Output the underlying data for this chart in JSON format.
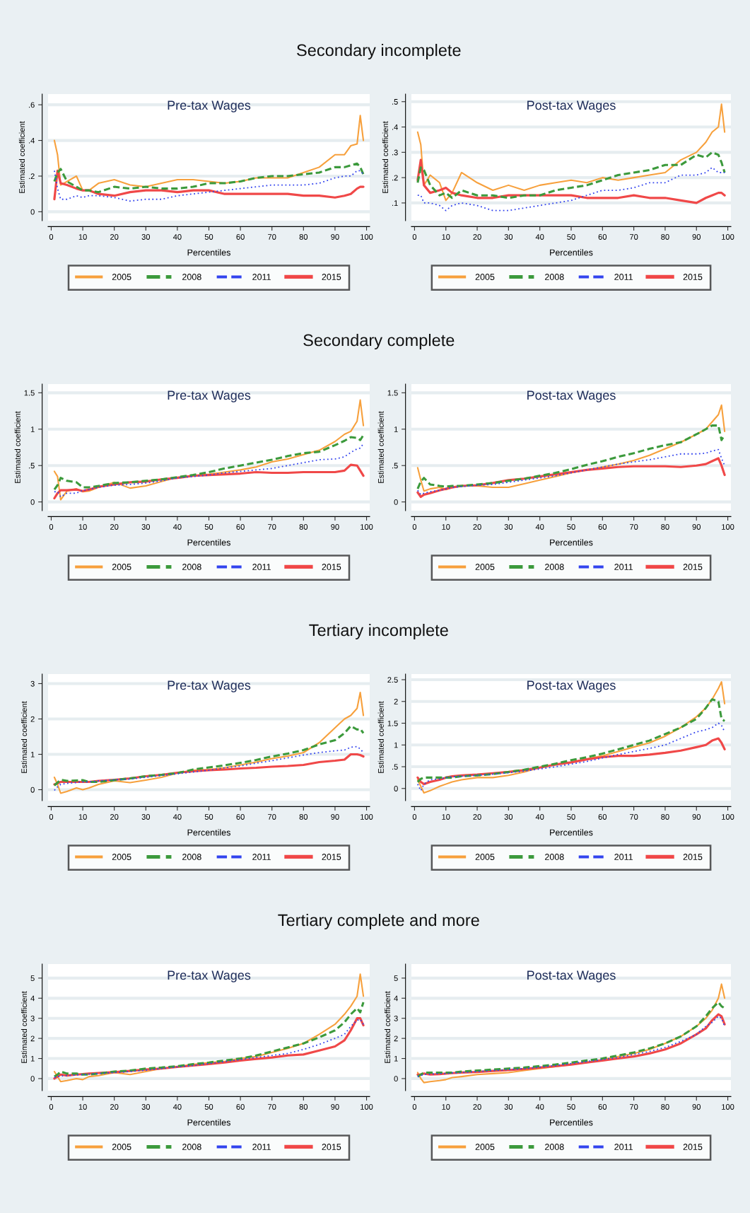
{
  "chart_data": [
    {
      "type": "line",
      "annotations": [
        "Secondary incomplete"
      ],
      "title": "Pre-tax Wages",
      "xlabel": "Percentiles",
      "ylabel": "Estimated coefficient",
      "xlim": [
        -1,
        101
      ],
      "xticks": [
        0,
        10,
        20,
        30,
        40,
        50,
        60,
        70,
        80,
        90,
        100
      ],
      "ylim": [
        -0.05,
        0.66
      ],
      "yticks": [
        0,
        {
          "value": 0.2,
          "label": ".2"
        },
        {
          "value": 0.4,
          "label": ".4"
        },
        {
          "value": 0.6,
          "label": ".6"
        }
      ],
      "grid": "y",
      "legend": "bottom",
      "x": [
        1,
        2,
        3,
        5,
        8,
        10,
        12,
        15,
        20,
        25,
        30,
        35,
        40,
        45,
        50,
        55,
        60,
        65,
        70,
        75,
        80,
        85,
        90,
        93,
        95,
        97,
        98,
        99
      ],
      "series": [
        {
          "name": "2005",
          "color": "#f7a03c",
          "line_style": "solid",
          "values": [
            0.4,
            0.32,
            0.15,
            0.17,
            0.2,
            0.12,
            0.12,
            0.16,
            0.18,
            0.15,
            0.14,
            0.16,
            0.18,
            0.18,
            0.17,
            0.16,
            0.17,
            0.19,
            0.19,
            0.19,
            0.22,
            0.25,
            0.32,
            0.32,
            0.37,
            0.38,
            0.54,
            0.4
          ]
        },
        {
          "name": "2008",
          "color": "#3c9a3c",
          "line_style": "dashed",
          "values": [
            0.17,
            0.22,
            0.24,
            0.17,
            0.14,
            0.12,
            0.12,
            0.11,
            0.14,
            0.13,
            0.14,
            0.13,
            0.13,
            0.14,
            0.16,
            0.16,
            0.17,
            0.19,
            0.2,
            0.2,
            0.21,
            0.22,
            0.25,
            0.25,
            0.26,
            0.27,
            0.25,
            0.21
          ]
        },
        {
          "name": "2011",
          "color": "#3344ee",
          "line_style": "dotted",
          "values": [
            0.23,
            0.13,
            0.07,
            0.07,
            0.09,
            0.08,
            0.09,
            0.09,
            0.08,
            0.06,
            0.07,
            0.07,
            0.09,
            0.1,
            0.11,
            0.12,
            0.13,
            0.14,
            0.15,
            0.15,
            0.15,
            0.16,
            0.19,
            0.2,
            0.2,
            0.23,
            0.23,
            0.21
          ]
        },
        {
          "name": "2015",
          "color": "#f04848",
          "line_style": "solid",
          "values": [
            0.07,
            0.23,
            0.16,
            0.15,
            0.13,
            0.12,
            0.12,
            0.1,
            0.09,
            0.11,
            0.12,
            0.12,
            0.11,
            0.12,
            0.12,
            0.1,
            0.1,
            0.1,
            0.1,
            0.1,
            0.09,
            0.09,
            0.08,
            0.09,
            0.1,
            0.13,
            0.14,
            0.14
          ]
        }
      ]
    },
    {
      "type": "line",
      "title": "Post-tax Wages",
      "xlabel": "Percentiles",
      "ylabel": "Estimated coefficient",
      "xlim": [
        -1,
        101
      ],
      "xticks": [
        0,
        10,
        20,
        30,
        40,
        50,
        60,
        70,
        80,
        90,
        100
      ],
      "ylim": [
        0.03,
        0.53
      ],
      "yticks": [
        {
          "value": 0.1,
          "label": ".1"
        },
        {
          "value": 0.2,
          "label": ".2"
        },
        {
          "value": 0.3,
          "label": ".3"
        },
        {
          "value": 0.4,
          "label": ".4"
        },
        {
          "value": 0.5,
          "label": ".5"
        }
      ],
      "grid": "y",
      "legend": "bottom",
      "x": [
        1,
        2,
        3,
        5,
        8,
        10,
        12,
        15,
        20,
        25,
        30,
        35,
        40,
        45,
        50,
        55,
        60,
        65,
        70,
        75,
        80,
        85,
        90,
        93,
        95,
        97,
        98,
        99
      ],
      "series": [
        {
          "name": "2005",
          "color": "#f7a03c",
          "line_style": "solid",
          "values": [
            0.38,
            0.33,
            0.17,
            0.21,
            0.18,
            0.11,
            0.14,
            0.22,
            0.18,
            0.15,
            0.17,
            0.15,
            0.17,
            0.18,
            0.19,
            0.18,
            0.2,
            0.19,
            0.2,
            0.21,
            0.22,
            0.27,
            0.3,
            0.34,
            0.38,
            0.4,
            0.49,
            0.38
          ]
        },
        {
          "name": "2008",
          "color": "#3c9a3c",
          "line_style": "dashed",
          "values": [
            0.18,
            0.24,
            0.23,
            0.17,
            0.13,
            0.14,
            0.12,
            0.15,
            0.13,
            0.13,
            0.12,
            0.13,
            0.13,
            0.15,
            0.16,
            0.17,
            0.19,
            0.21,
            0.22,
            0.23,
            0.25,
            0.25,
            0.29,
            0.28,
            0.3,
            0.29,
            0.26,
            0.22
          ]
        },
        {
          "name": "2011",
          "color": "#3344ee",
          "line_style": "dotted",
          "values": [
            0.13,
            0.13,
            0.1,
            0.1,
            0.09,
            0.07,
            0.09,
            0.1,
            0.09,
            0.07,
            0.07,
            0.08,
            0.09,
            0.1,
            0.11,
            0.13,
            0.15,
            0.15,
            0.16,
            0.18,
            0.18,
            0.21,
            0.21,
            0.22,
            0.24,
            0.22,
            0.22,
            0.22
          ]
        },
        {
          "name": "2015",
          "color": "#f04848",
          "line_style": "solid",
          "values": [
            0.19,
            0.27,
            0.17,
            0.14,
            0.15,
            0.16,
            0.14,
            0.13,
            0.12,
            0.12,
            0.13,
            0.13,
            0.13,
            0.13,
            0.13,
            0.12,
            0.12,
            0.12,
            0.13,
            0.12,
            0.12,
            0.11,
            0.1,
            0.12,
            0.13,
            0.14,
            0.14,
            0.13
          ]
        }
      ]
    },
    {
      "type": "line",
      "annotations": [
        "Secondary complete"
      ],
      "title": "Pre-tax Wages",
      "xlabel": "Percentiles",
      "ylabel": "Estimated coefficient",
      "xlim": [
        -1,
        101
      ],
      "xticks": [
        0,
        10,
        20,
        30,
        40,
        50,
        60,
        70,
        80,
        90,
        100
      ],
      "ylim": [
        -0.12,
        1.62
      ],
      "yticks": [
        0,
        {
          "value": 0.5,
          "label": ".5"
        },
        1,
        1.5
      ],
      "grid": "y",
      "legend": "bottom",
      "x": [
        1,
        2,
        3,
        5,
        8,
        10,
        12,
        15,
        20,
        25,
        30,
        35,
        40,
        45,
        50,
        55,
        60,
        65,
        70,
        75,
        80,
        85,
        90,
        93,
        95,
        97,
        98,
        99
      ],
      "series": [
        {
          "name": "2005",
          "color": "#f7a03c",
          "line_style": "solid",
          "values": [
            0.42,
            0.35,
            0.03,
            0.15,
            0.18,
            0.14,
            0.15,
            0.2,
            0.27,
            0.19,
            0.22,
            0.28,
            0.34,
            0.36,
            0.38,
            0.41,
            0.44,
            0.48,
            0.55,
            0.59,
            0.65,
            0.71,
            0.83,
            0.93,
            0.97,
            1.11,
            1.4,
            1.05
          ]
        },
        {
          "name": "2008",
          "color": "#3c9a3c",
          "line_style": "dashed",
          "values": [
            0.17,
            0.23,
            0.33,
            0.29,
            0.27,
            0.2,
            0.2,
            0.22,
            0.26,
            0.27,
            0.29,
            0.31,
            0.34,
            0.37,
            0.41,
            0.46,
            0.5,
            0.54,
            0.58,
            0.63,
            0.67,
            0.69,
            0.78,
            0.84,
            0.89,
            0.88,
            0.85,
            0.92
          ]
        },
        {
          "name": "2011",
          "color": "#3344ee",
          "line_style": "dotted",
          "values": [
            0.14,
            0.14,
            0.07,
            0.12,
            0.12,
            0.16,
            0.17,
            0.2,
            0.23,
            0.24,
            0.26,
            0.29,
            0.33,
            0.35,
            0.37,
            0.4,
            0.42,
            0.44,
            0.46,
            0.5,
            0.54,
            0.58,
            0.59,
            0.62,
            0.68,
            0.73,
            0.74,
            0.8
          ]
        },
        {
          "name": "2015",
          "color": "#f04848",
          "line_style": "solid",
          "values": [
            0.05,
            0.12,
            0.16,
            0.16,
            0.17,
            0.15,
            0.17,
            0.21,
            0.24,
            0.27,
            0.28,
            0.31,
            0.33,
            0.36,
            0.37,
            0.38,
            0.39,
            0.41,
            0.4,
            0.4,
            0.41,
            0.41,
            0.41,
            0.43,
            0.51,
            0.5,
            0.43,
            0.36
          ]
        }
      ]
    },
    {
      "type": "line",
      "title": "Post-tax Wages",
      "xlabel": "Percentiles",
      "ylabel": "Estimated coefficient",
      "xlim": [
        -1,
        101
      ],
      "xticks": [
        0,
        10,
        20,
        30,
        40,
        50,
        60,
        70,
        80,
        90,
        100
      ],
      "ylim": [
        -0.12,
        1.62
      ],
      "yticks": [
        0,
        {
          "value": 0.5,
          "label": ".5"
        },
        1,
        1.5
      ],
      "grid": "y",
      "legend": "bottom",
      "x": [
        1,
        2,
        3,
        5,
        8,
        10,
        12,
        15,
        20,
        25,
        30,
        35,
        40,
        45,
        50,
        55,
        60,
        65,
        70,
        75,
        80,
        85,
        90,
        93,
        95,
        97,
        98,
        99
      ],
      "series": [
        {
          "name": "2005",
          "color": "#f7a03c",
          "line_style": "solid",
          "values": [
            0.47,
            0.3,
            0.15,
            0.18,
            0.2,
            0.17,
            0.2,
            0.22,
            0.22,
            0.2,
            0.2,
            0.25,
            0.3,
            0.35,
            0.4,
            0.44,
            0.48,
            0.52,
            0.57,
            0.64,
            0.73,
            0.82,
            0.93,
            1.0,
            1.1,
            1.2,
            1.33,
            0.97
          ]
        },
        {
          "name": "2008",
          "color": "#3c9a3c",
          "line_style": "dashed",
          "values": [
            0.18,
            0.28,
            0.33,
            0.24,
            0.22,
            0.21,
            0.22,
            0.22,
            0.24,
            0.26,
            0.29,
            0.32,
            0.36,
            0.4,
            0.45,
            0.51,
            0.56,
            0.62,
            0.67,
            0.73,
            0.78,
            0.82,
            0.93,
            1.0,
            1.05,
            1.05,
            0.85,
            0.92
          ]
        },
        {
          "name": "2011",
          "color": "#3344ee",
          "line_style": "dotted",
          "values": [
            0.16,
            0.1,
            0.12,
            0.14,
            0.16,
            0.18,
            0.2,
            0.21,
            0.23,
            0.24,
            0.27,
            0.3,
            0.33,
            0.36,
            0.4,
            0.44,
            0.48,
            0.52,
            0.55,
            0.58,
            0.62,
            0.66,
            0.66,
            0.67,
            0.7,
            0.72,
            0.6,
            0.5
          ]
        },
        {
          "name": "2015",
          "color": "#f04848",
          "line_style": "solid",
          "values": [
            0.13,
            0.07,
            0.1,
            0.12,
            0.16,
            0.18,
            0.2,
            0.22,
            0.23,
            0.26,
            0.3,
            0.32,
            0.35,
            0.38,
            0.41,
            0.44,
            0.46,
            0.48,
            0.49,
            0.49,
            0.49,
            0.48,
            0.5,
            0.52,
            0.56,
            0.6,
            0.5,
            0.37
          ]
        }
      ]
    },
    {
      "type": "line",
      "annotations": [
        "Tertiary incomplete"
      ],
      "title": "Pre-tax Wages",
      "xlabel": "Percentiles",
      "ylabel": "Estimated coefficient",
      "xlim": [
        -1,
        101
      ],
      "xticks": [
        0,
        10,
        20,
        30,
        40,
        50,
        60,
        70,
        80,
        90,
        100
      ],
      "ylim": [
        -0.31,
        3.27
      ],
      "yticks": [
        0,
        1,
        2,
        3
      ],
      "grid": "y",
      "legend": "bottom",
      "x": [
        1,
        2,
        3,
        5,
        8,
        10,
        12,
        15,
        20,
        25,
        30,
        35,
        40,
        45,
        50,
        55,
        60,
        65,
        70,
        75,
        80,
        85,
        90,
        93,
        95,
        97,
        98,
        99
      ],
      "series": [
        {
          "name": "2005",
          "color": "#f7a03c",
          "line_style": "solid",
          "values": [
            0.35,
            0.15,
            -0.1,
            -0.05,
            0.05,
            0.0,
            0.05,
            0.15,
            0.25,
            0.2,
            0.27,
            0.35,
            0.47,
            0.55,
            0.57,
            0.62,
            0.7,
            0.78,
            0.88,
            0.95,
            1.05,
            1.33,
            1.75,
            2.0,
            2.1,
            2.3,
            2.75,
            2.1
          ]
        },
        {
          "name": "2008",
          "color": "#3c9a3c",
          "line_style": "dashed",
          "values": [
            0.12,
            0.2,
            0.28,
            0.25,
            0.26,
            0.27,
            0.22,
            0.22,
            0.27,
            0.32,
            0.38,
            0.42,
            0.47,
            0.57,
            0.63,
            0.69,
            0.76,
            0.84,
            0.94,
            1.02,
            1.12,
            1.28,
            1.4,
            1.6,
            1.8,
            1.7,
            1.72,
            1.6
          ]
        },
        {
          "name": "2011",
          "color": "#3344ee",
          "line_style": "dotted",
          "values": [
            -0.02,
            0.08,
            0.15,
            0.18,
            0.2,
            0.22,
            0.22,
            0.25,
            0.28,
            0.3,
            0.35,
            0.4,
            0.45,
            0.5,
            0.55,
            0.62,
            0.67,
            0.75,
            0.82,
            0.9,
            0.98,
            1.05,
            1.1,
            1.12,
            1.2,
            1.22,
            1.15,
            1.05
          ]
        },
        {
          "name": "2015",
          "color": "#f04848",
          "line_style": "solid",
          "values": [
            0.15,
            0.18,
            0.22,
            0.22,
            0.22,
            0.22,
            0.22,
            0.25,
            0.28,
            0.32,
            0.38,
            0.42,
            0.48,
            0.52,
            0.55,
            0.57,
            0.6,
            0.62,
            0.65,
            0.67,
            0.7,
            0.78,
            0.82,
            0.85,
            1.0,
            1.0,
            0.98,
            0.94
          ]
        }
      ]
    },
    {
      "type": "line",
      "title": "Post-tax Wages",
      "xlabel": "Percentiles",
      "ylabel": "Estimated coefficient",
      "xlim": [
        -1,
        101
      ],
      "xticks": [
        0,
        10,
        20,
        30,
        40,
        50,
        60,
        70,
        80,
        90,
        100
      ],
      "ylim": [
        -0.28,
        2.63
      ],
      "yticks": [
        0,
        {
          "value": 0.5,
          "label": ".5"
        },
        1,
        1.5,
        2,
        2.5
      ],
      "grid": "y",
      "legend": "bottom",
      "x": [
        1,
        2,
        3,
        5,
        8,
        10,
        12,
        15,
        20,
        25,
        30,
        35,
        40,
        45,
        50,
        55,
        60,
        65,
        70,
        75,
        80,
        85,
        90,
        93,
        95,
        97,
        98,
        99
      ],
      "series": [
        {
          "name": "2005",
          "color": "#f7a03c",
          "line_style": "solid",
          "values": [
            0.2,
            0.05,
            -0.1,
            -0.05,
            0.05,
            0.1,
            0.15,
            0.2,
            0.25,
            0.25,
            0.3,
            0.38,
            0.48,
            0.55,
            0.6,
            0.68,
            0.75,
            0.85,
            0.95,
            1.05,
            1.2,
            1.4,
            1.65,
            1.85,
            2.05,
            2.3,
            2.45,
            1.95
          ]
        },
        {
          "name": "2008",
          "color": "#3c9a3c",
          "line_style": "dashed",
          "values": [
            0.15,
            0.22,
            0.25,
            0.25,
            0.25,
            0.25,
            0.25,
            0.28,
            0.3,
            0.33,
            0.38,
            0.43,
            0.5,
            0.57,
            0.65,
            0.72,
            0.8,
            0.9,
            1.0,
            1.1,
            1.25,
            1.4,
            1.6,
            1.85,
            2.05,
            2.0,
            1.6,
            1.55
          ]
        },
        {
          "name": "2011",
          "color": "#3344ee",
          "line_style": "dotted",
          "values": [
            0.1,
            -0.05,
            0.1,
            0.2,
            0.22,
            0.25,
            0.27,
            0.28,
            0.3,
            0.33,
            0.36,
            0.4,
            0.45,
            0.5,
            0.56,
            0.62,
            0.7,
            0.78,
            0.85,
            0.92,
            1.0,
            1.15,
            1.3,
            1.35,
            1.4,
            1.5,
            1.45,
            1.3
          ]
        },
        {
          "name": "2015",
          "color": "#f04848",
          "line_style": "solid",
          "values": [
            0.25,
            0.15,
            0.1,
            0.15,
            0.2,
            0.25,
            0.28,
            0.3,
            0.32,
            0.35,
            0.38,
            0.42,
            0.48,
            0.55,
            0.6,
            0.67,
            0.72,
            0.75,
            0.75,
            0.78,
            0.82,
            0.87,
            0.95,
            1.0,
            1.1,
            1.15,
            1.05,
            0.9
          ]
        }
      ]
    },
    {
      "type": "line",
      "annotations": [
        "Tertiary complete and more"
      ],
      "title": "Pre-tax Wages",
      "xlabel": "Percentiles",
      "ylabel": "Estimated coefficient",
      "xlim": [
        -1,
        101
      ],
      "xticks": [
        0,
        10,
        20,
        30,
        40,
        50,
        60,
        70,
        80,
        90,
        100
      ],
      "ylim": [
        -0.6,
        5.7
      ],
      "yticks": [
        0,
        1,
        2,
        3,
        4,
        5
      ],
      "grid": "y",
      "legend": "bottom",
      "x": [
        1,
        2,
        3,
        5,
        8,
        10,
        12,
        15,
        20,
        25,
        30,
        35,
        40,
        45,
        50,
        55,
        60,
        65,
        70,
        75,
        80,
        85,
        90,
        93,
        95,
        97,
        98,
        99
      ],
      "series": [
        {
          "name": "2005",
          "color": "#f7a03c",
          "line_style": "solid",
          "values": [
            0.35,
            0.1,
            -0.15,
            -0.1,
            0.0,
            -0.05,
            0.1,
            0.15,
            0.3,
            0.2,
            0.35,
            0.5,
            0.6,
            0.7,
            0.8,
            0.85,
            1.0,
            1.1,
            1.3,
            1.5,
            1.75,
            2.2,
            2.7,
            3.2,
            3.6,
            4.1,
            5.2,
            4.1
          ]
        },
        {
          "name": "2008",
          "color": "#3c9a3c",
          "line_style": "dashed",
          "values": [
            0.1,
            0.2,
            0.35,
            0.25,
            0.25,
            0.2,
            0.2,
            0.25,
            0.35,
            0.4,
            0.5,
            0.55,
            0.62,
            0.72,
            0.8,
            0.9,
            1.0,
            1.15,
            1.35,
            1.55,
            1.75,
            2.05,
            2.4,
            2.8,
            3.2,
            3.5,
            3.3,
            3.8
          ]
        },
        {
          "name": "2011",
          "color": "#3344ee",
          "line_style": "dotted",
          "values": [
            0.05,
            0.1,
            0.12,
            0.15,
            0.18,
            0.2,
            0.22,
            0.25,
            0.3,
            0.35,
            0.42,
            0.5,
            0.58,
            0.65,
            0.75,
            0.85,
            0.95,
            1.05,
            1.15,
            1.25,
            1.45,
            1.7,
            2.0,
            2.2,
            2.6,
            2.9,
            2.95,
            2.7
          ]
        },
        {
          "name": "2015",
          "color": "#f04848",
          "line_style": "solid",
          "values": [
            0.0,
            0.1,
            0.2,
            0.15,
            0.2,
            0.22,
            0.25,
            0.28,
            0.32,
            0.38,
            0.45,
            0.5,
            0.58,
            0.65,
            0.72,
            0.8,
            0.9,
            0.98,
            1.05,
            1.15,
            1.2,
            1.4,
            1.6,
            1.9,
            2.4,
            3.0,
            3.0,
            2.65
          ]
        }
      ]
    },
    {
      "type": "line",
      "title": "Post-tax Wages",
      "xlabel": "Percentiles",
      "ylabel": "Estimated coefficient",
      "xlim": [
        -1,
        101
      ],
      "xticks": [
        0,
        10,
        20,
        30,
        40,
        50,
        60,
        70,
        80,
        90,
        100
      ],
      "ylim": [
        -0.6,
        5.7
      ],
      "yticks": [
        0,
        1,
        2,
        3,
        4,
        5
      ],
      "grid": "y",
      "legend": "bottom",
      "x": [
        1,
        2,
        3,
        5,
        8,
        10,
        12,
        15,
        20,
        25,
        30,
        35,
        40,
        45,
        50,
        55,
        60,
        65,
        70,
        75,
        80,
        85,
        90,
        93,
        95,
        97,
        98,
        99
      ],
      "series": [
        {
          "name": "2005",
          "color": "#f7a03c",
          "line_style": "solid",
          "values": [
            0.3,
            0.0,
            -0.2,
            -0.15,
            -0.1,
            -0.05,
            0.05,
            0.1,
            0.2,
            0.25,
            0.3,
            0.4,
            0.5,
            0.6,
            0.7,
            0.8,
            0.95,
            1.1,
            1.25,
            1.45,
            1.75,
            2.1,
            2.6,
            3.0,
            3.4,
            4.0,
            4.7,
            4.0
          ]
        },
        {
          "name": "2008",
          "color": "#3c9a3c",
          "line_style": "dashed",
          "values": [
            0.1,
            0.2,
            0.3,
            0.3,
            0.3,
            0.3,
            0.3,
            0.35,
            0.4,
            0.45,
            0.5,
            0.55,
            0.62,
            0.7,
            0.8,
            0.9,
            1.0,
            1.15,
            1.3,
            1.5,
            1.75,
            2.1,
            2.6,
            3.1,
            3.5,
            3.8,
            3.6,
            3.5
          ]
        },
        {
          "name": "2011",
          "color": "#3344ee",
          "line_style": "dotted",
          "values": [
            0.1,
            0.15,
            0.2,
            0.22,
            0.25,
            0.25,
            0.28,
            0.3,
            0.35,
            0.4,
            0.45,
            0.5,
            0.57,
            0.65,
            0.75,
            0.85,
            0.95,
            1.05,
            1.2,
            1.35,
            1.55,
            1.85,
            2.2,
            2.6,
            2.8,
            3.1,
            3.0,
            2.6
          ]
        },
        {
          "name": "2015",
          "color": "#f04848",
          "line_style": "solid",
          "values": [
            0.2,
            0.2,
            0.25,
            0.2,
            0.22,
            0.25,
            0.27,
            0.3,
            0.33,
            0.38,
            0.42,
            0.48,
            0.55,
            0.62,
            0.7,
            0.8,
            0.9,
            1.0,
            1.1,
            1.25,
            1.45,
            1.75,
            2.2,
            2.5,
            2.9,
            3.2,
            3.1,
            2.7
          ]
        }
      ]
    }
  ]
}
